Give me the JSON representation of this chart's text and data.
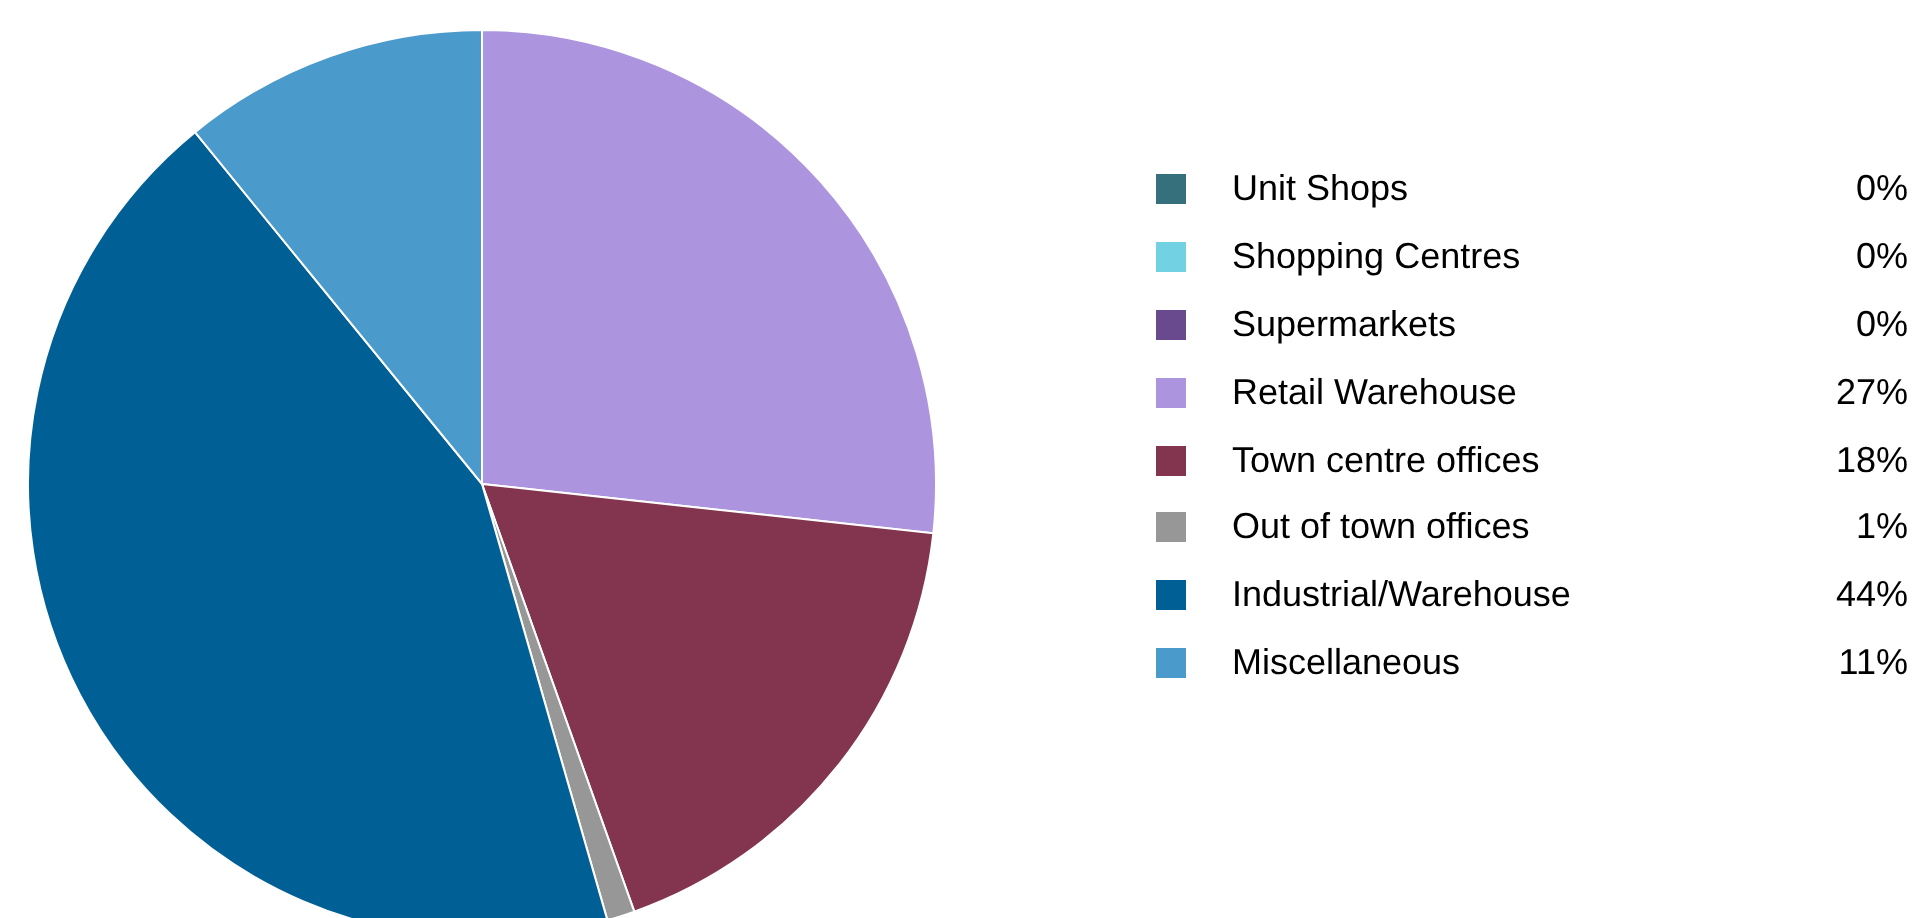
{
  "chart_data": {
    "type": "pie",
    "categories": [
      "Unit Shops",
      "Shopping Centres",
      "Supermarkets",
      "Retail Warehouse",
      "Town centre offices",
      "Out of town offices",
      "Industrial/Warehouse",
      "Miscellaneous"
    ],
    "values": [
      0,
      0,
      0,
      27,
      18,
      1,
      44,
      11
    ],
    "value_labels": [
      "0%",
      "0%",
      "0%",
      "27%",
      "18%",
      "1%",
      "44%",
      "11%"
    ],
    "colors": [
      "#36707c",
      "#72d2e3",
      "#6a4a8e",
      "#ac95de",
      "#83344f",
      "#979797",
      "#006096",
      "#4a9acb"
    ],
    "legend": "right"
  }
}
